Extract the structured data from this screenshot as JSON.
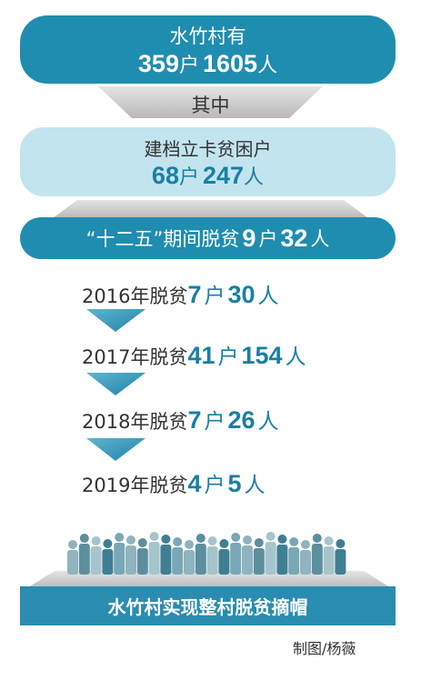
{
  "header": {
    "label": "水竹村有",
    "households": 359,
    "household_unit": "户",
    "people": 1605,
    "people_unit": "人"
  },
  "connector": "其中",
  "registered": {
    "label": "建档立卡贫困户",
    "households": 68,
    "household_unit": "户",
    "people": 247,
    "people_unit": "人"
  },
  "five_year_plan": {
    "label": "“十二五”期间脱贫",
    "households": 9,
    "household_unit": "户",
    "people": 32,
    "people_unit": "人"
  },
  "years": [
    {
      "label": "2016年脱贫",
      "households": 7,
      "household_unit": "户",
      "people": 30,
      "people_unit": "人"
    },
    {
      "label": "2017年脱贫",
      "households": 41,
      "household_unit": "户",
      "people": 154,
      "people_unit": "人"
    },
    {
      "label": "2018年脱贫",
      "households": 7,
      "household_unit": "户",
      "people": 26,
      "people_unit": "人"
    },
    {
      "label": "2019年脱贫",
      "households": 4,
      "household_unit": "户",
      "people": 5,
      "people_unit": "人"
    }
  ],
  "banner": "水竹村实现整村脱贫摘帽",
  "credit": "制图/杨薇"
}
